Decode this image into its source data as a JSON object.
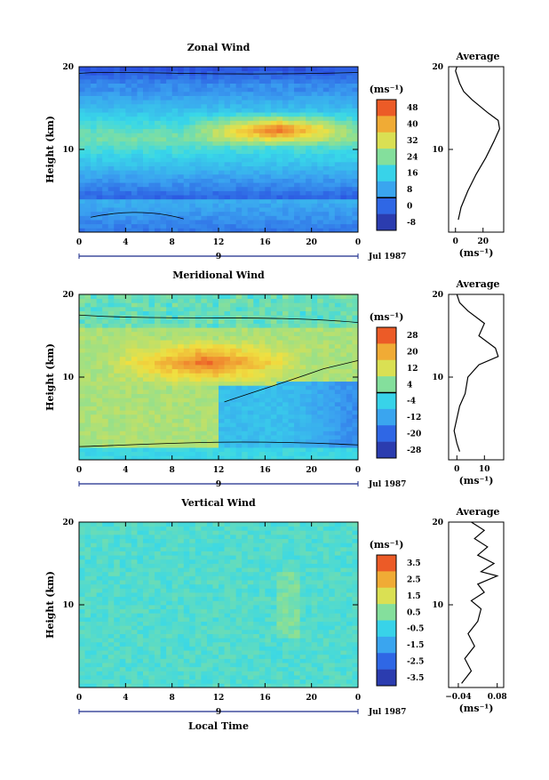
{
  "chart_data": [
    {
      "type": "heatmap",
      "title": "Zonal Wind",
      "ylabel": "Height (km)",
      "xlabel": "",
      "x_ticks": [
        "0",
        "4",
        "8",
        "12",
        "16",
        "20",
        "0"
      ],
      "y_ticks": [
        "10",
        "20"
      ],
      "ylim": [
        0,
        20
      ],
      "xlim": [
        0,
        24
      ],
      "date_marker": "9",
      "date_label": "Jul 1987",
      "colorbar": {
        "unit": "(ms⁻¹)",
        "labels": [
          "48",
          "40",
          "32",
          "24",
          "16",
          "8",
          "0",
          "-8"
        ],
        "zero_line": "0"
      },
      "profile": {
        "title": "Average",
        "x_ticks": [
          "0",
          "20"
        ],
        "xlim": [
          -5,
          35
        ],
        "xlabel": "(ms⁻¹)",
        "y_ticks": [
          "10",
          "20"
        ],
        "heights": [
          1.5,
          3,
          5,
          7,
          9,
          11,
          12.5,
          13.5,
          14.5,
          16,
          17,
          18,
          19,
          19.5,
          20
        ],
        "values": [
          2,
          4,
          9,
          15,
          22,
          28,
          32,
          31,
          23,
          12,
          6,
          3,
          1,
          0,
          1
        ]
      },
      "field_summary": "jet maximum ~40-48 m/s near 12-13 km between 12 and 21 LT; weak easterlies near 2 km and 19-20 km"
    },
    {
      "type": "heatmap",
      "title": "Meridional Wind",
      "ylabel": "Height (km)",
      "xlabel": "",
      "x_ticks": [
        "0",
        "4",
        "8",
        "12",
        "16",
        "20",
        "0"
      ],
      "y_ticks": [
        "10",
        "20"
      ],
      "ylim": [
        0,
        20
      ],
      "xlim": [
        0,
        24
      ],
      "date_marker": "9",
      "date_label": "Jul 1987",
      "colorbar": {
        "unit": "(ms⁻¹)",
        "labels": [
          "28",
          "20",
          "12",
          "4",
          "-4",
          "-12",
          "-20",
          "-28"
        ],
        "zero_line": "4/-4"
      },
      "profile": {
        "title": "Average",
        "x_ticks": [
          "0",
          "10"
        ],
        "xlim": [
          -3,
          17
        ],
        "xlabel": "(ms⁻¹)",
        "y_ticks": [
          "10",
          "20"
        ],
        "heights": [
          1,
          2,
          3.5,
          5,
          6.5,
          8,
          10,
          11.5,
          12.5,
          13.5,
          15,
          16.5,
          18,
          19,
          20
        ],
        "values": [
          1,
          0,
          -1,
          0,
          1,
          3,
          4,
          8,
          15,
          14,
          8,
          10,
          4,
          1,
          0
        ]
      },
      "field_summary": "southerly maximum ~20-28 m/s near 11-12 km around 10-15 LT; northerly flow below 9 km after 13 LT"
    },
    {
      "type": "heatmap",
      "title": "Vertical Wind",
      "ylabel": "Height (km)",
      "xlabel": "Local Time",
      "x_ticks": [
        "0",
        "4",
        "8",
        "12",
        "16",
        "20",
        "0"
      ],
      "y_ticks": [
        "10",
        "20"
      ],
      "ylim": [
        0,
        20
      ],
      "xlim": [
        0,
        24
      ],
      "date_marker": "9",
      "date_label": "Jul 1987",
      "colorbar": {
        "unit": "(ms⁻¹)",
        "labels": [
          "3.5",
          "2.5",
          "1.5",
          "0.5",
          "-0.5",
          "-1.5",
          "-2.5",
          "-3.5"
        ],
        "zero_line": ""
      },
      "profile": {
        "title": "Average",
        "x_ticks": [
          "−0.04",
          "0.08"
        ],
        "xlim": [
          -0.07,
          0.1
        ],
        "xlabel": "(ms⁻¹)",
        "y_ticks": [
          "10",
          "20"
        ],
        "heights": [
          0.5,
          2,
          3.5,
          5,
          6.5,
          8,
          9.5,
          10.5,
          11.5,
          12.5,
          13.5,
          14,
          15,
          16,
          17,
          18,
          19,
          20
        ],
        "values": [
          -0.03,
          0,
          -0.02,
          0.01,
          -0.01,
          0.02,
          0.03,
          0.0,
          0.04,
          0.02,
          0.08,
          0.03,
          0.07,
          0.02,
          0.05,
          0.01,
          0.04,
          0.0
        ]
      },
      "field_summary": "near-zero vertical wind (-0.5 to 0.5 m/s) nearly everywhere"
    }
  ]
}
